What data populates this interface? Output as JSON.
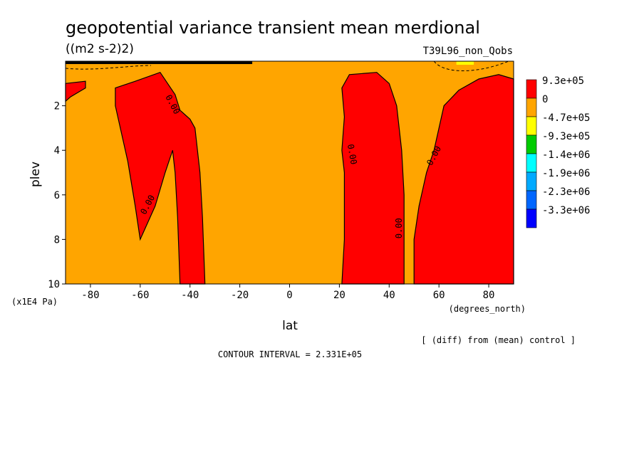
{
  "chart_data": {
    "type": "heatmap",
    "title": "geopotential variance transient mean merdional",
    "units": "((m2 s-2)2)",
    "run_label": "T39L96_non_Qobs",
    "xlabel": "lat",
    "xunits": "(degrees_north)",
    "ylabel": "plev",
    "yunits": "(x1E4 Pa)",
    "xlim": [
      -90,
      90
    ],
    "ylim": [
      10,
      0
    ],
    "x_ticks": [
      "-80",
      "-60",
      "-40",
      "-20",
      "0",
      "20",
      "40",
      "60",
      "80"
    ],
    "x_tick_values": [
      -80,
      -60,
      -40,
      -20,
      0,
      20,
      40,
      60,
      80
    ],
    "y_ticks": [
      "2",
      "4",
      "6",
      "8",
      "10"
    ],
    "y_tick_values": [
      2,
      4,
      6,
      8,
      10
    ],
    "contour_interval_text": "CONTOUR INTERVAL = 2.331E+05",
    "diff_note": "[ (diff) from (mean) control ]",
    "contour_labels": [
      "0.00",
      "0.00",
      "0.00",
      "0.00",
      "0.00"
    ],
    "legend": [
      {
        "label": "9.3e+05",
        "color": "#ff0000"
      },
      {
        "label": "0",
        "color": "#ffa500"
      },
      {
        "label": "-4.7e+05",
        "color": "#ffff00"
      },
      {
        "label": "-9.3e+05",
        "color": "#00cc00"
      },
      {
        "label": "-1.4e+06",
        "color": "#00ffff"
      },
      {
        "label": "-1.9e+06",
        "color": "#00aaff"
      },
      {
        "label": "-2.3e+06",
        "color": "#0066ff"
      },
      {
        "label": "-3.3e+06",
        "color": "#0000ff"
      }
    ],
    "background_color": "#ffa500",
    "positive_regions": [
      {
        "name": "south-polar-upper",
        "points": [
          [
            -90,
            1.0
          ],
          [
            -82,
            0.9
          ],
          [
            -82,
            1.2
          ],
          [
            -88,
            1.6
          ],
          [
            -90,
            1.8
          ]
        ]
      },
      {
        "name": "southern-midlatitude-lobe",
        "points": [
          [
            -70,
            1.2
          ],
          [
            -62,
            0.9
          ],
          [
            -52,
            0.5
          ],
          [
            -46,
            1.5
          ],
          [
            -44,
            2.2
          ],
          [
            -40,
            2.6
          ],
          [
            -38,
            3.0
          ],
          [
            -36,
            5.0
          ],
          [
            -35,
            7.0
          ],
          [
            -34,
            10
          ],
          [
            -44,
            10
          ],
          [
            -45,
            7.0
          ],
          [
            -46,
            5.0
          ],
          [
            -47,
            4.0
          ],
          [
            -50,
            5.0
          ],
          [
            -54,
            6.5
          ],
          [
            -60,
            8.0
          ],
          [
            -62,
            6.5
          ],
          [
            -65,
            4.5
          ],
          [
            -68,
            3.0
          ],
          [
            -70,
            2.0
          ]
        ]
      },
      {
        "name": "subtropical-nh-column",
        "points": [
          [
            21,
            10
          ],
          [
            22,
            8.0
          ],
          [
            22,
            5.0
          ],
          [
            21,
            4.0
          ],
          [
            22,
            2.5
          ],
          [
            21,
            1.2
          ],
          [
            24,
            0.6
          ],
          [
            35,
            0.5
          ],
          [
            40,
            1.0
          ],
          [
            43,
            2.0
          ],
          [
            45,
            4.0
          ],
          [
            46,
            6.0
          ],
          [
            46,
            10
          ]
        ]
      },
      {
        "name": "northern-high-latitude-column",
        "points": [
          [
            50,
            10
          ],
          [
            50,
            8.0
          ],
          [
            52,
            6.5
          ],
          [
            55,
            5.0
          ],
          [
            58,
            4.0
          ],
          [
            62,
            2.0
          ],
          [
            68,
            1.3
          ],
          [
            76,
            0.8
          ],
          [
            84,
            0.6
          ],
          [
            90,
            0.8
          ],
          [
            90,
            10
          ]
        ]
      }
    ]
  }
}
